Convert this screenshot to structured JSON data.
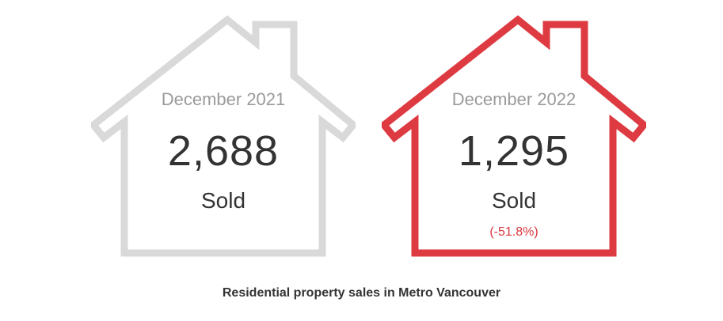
{
  "cards": [
    {
      "period": "December 2021",
      "value": "2,688",
      "label": "Sold",
      "change": "",
      "color": "#d9d9d9"
    },
    {
      "period": "December 2022",
      "value": "1,295",
      "label": "Sold",
      "change": "(-51.8%)",
      "color": "#dd3b41"
    }
  ],
  "caption": "Residential property sales in Metro Vancouver"
}
